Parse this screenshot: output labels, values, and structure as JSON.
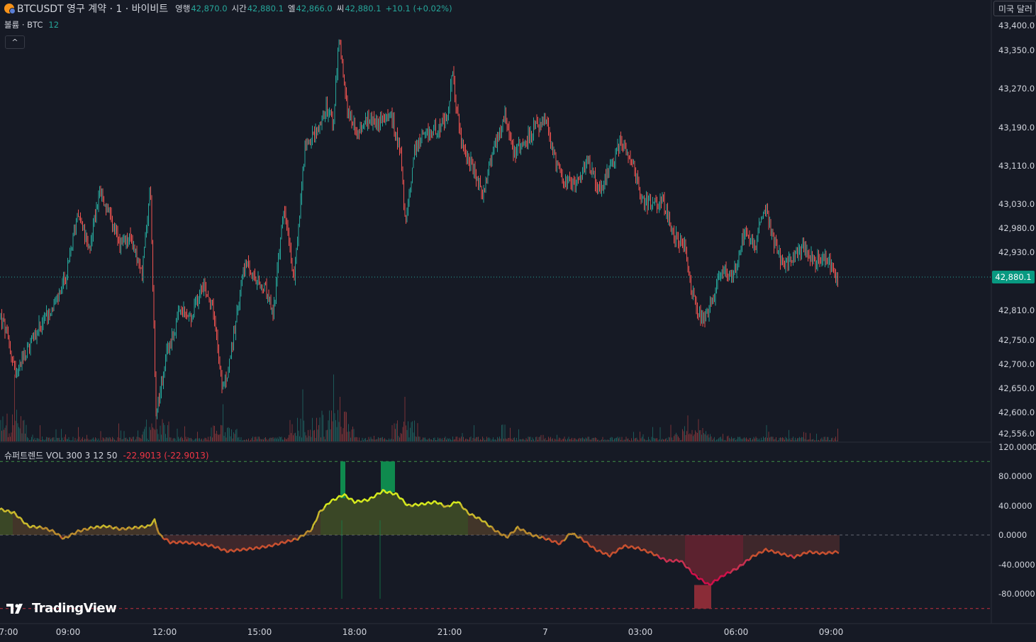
{
  "header": {
    "symbol": "BTCUSDT 영구 계약 · 1 · 바이비트",
    "open_label": "영행",
    "open_value": "42,870.0",
    "high_label": "시간",
    "high_value": "42,880.1",
    "low_label": "엘",
    "low_value": "42,866.0",
    "close_label": "씨",
    "close_value": "42,880.1",
    "change": "+10.1 (+0.02%)",
    "currency_button": "미국 달러"
  },
  "volume_legend": {
    "name": "볼륨 · BTC",
    "value": "12"
  },
  "collapse_button": "^",
  "indicator_legend": {
    "name": "슈퍼트렌드 VOL 300 3 12 50",
    "value": "-22.9013 (-22.9013)"
  },
  "price_axis": [
    "43,400.0",
    "43,350.0",
    "43,270.0",
    "43,190.0",
    "43,110.0",
    "43,030.0",
    "42,980.0",
    "42,930.0",
    "42,810.0",
    "42,750.0",
    "42,700.0",
    "42,650.0",
    "42,600.0",
    "42,556.0"
  ],
  "last_price": "42,880.1",
  "indicator_axis": [
    "120.0000",
    "80.0000",
    "40.0000",
    "0.0000",
    "-40.0000",
    "-80.0000"
  ],
  "time_axis": [
    "7:00",
    "09:00",
    "12:00",
    "15:00",
    "18:00",
    "21:00",
    "7",
    "03:00",
    "06:00",
    "09:00"
  ],
  "branding": "TradingView",
  "colors": {
    "up": "#26a69a",
    "down": "#ef5350",
    "background": "#161a25",
    "last_price_tag": "#089981"
  },
  "chart_data": {
    "type": "candlestick",
    "price_range": [
      42556,
      43400
    ],
    "indicator_range": [
      -100,
      120
    ],
    "last_price": 42880.1,
    "price_path": [
      [
        0,
        42800
      ],
      [
        10,
        42760
      ],
      [
        22,
        42680
      ],
      [
        40,
        42730
      ],
      [
        60,
        42790
      ],
      [
        80,
        42830
      ],
      [
        95,
        42890
      ],
      [
        110,
        43020
      ],
      [
        125,
        42930
      ],
      [
        140,
        43060
      ],
      [
        155,
        43000
      ],
      [
        170,
        42940
      ],
      [
        185,
        42960
      ],
      [
        200,
        42880
      ],
      [
        212,
        43070
      ],
      [
        220,
        42600
      ],
      [
        235,
        42720
      ],
      [
        255,
        42810
      ],
      [
        270,
        42790
      ],
      [
        285,
        42870
      ],
      [
        300,
        42820
      ],
      [
        315,
        42640
      ],
      [
        330,
        42760
      ],
      [
        345,
        42910
      ],
      [
        360,
        42870
      ],
      [
        375,
        42850
      ],
      [
        385,
        42800
      ],
      [
        400,
        43020
      ],
      [
        415,
        42880
      ],
      [
        430,
        43150
      ],
      [
        445,
        43180
      ],
      [
        460,
        43230
      ],
      [
        470,
        43200
      ],
      [
        478,
        43380
      ],
      [
        490,
        43230
      ],
      [
        505,
        43180
      ],
      [
        520,
        43210
      ],
      [
        535,
        43200
      ],
      [
        550,
        43220
      ],
      [
        565,
        43140
      ],
      [
        572,
        42980
      ],
      [
        585,
        43150
      ],
      [
        600,
        43170
      ],
      [
        615,
        43190
      ],
      [
        630,
        43200
      ],
      [
        638,
        43300
      ],
      [
        650,
        43160
      ],
      [
        665,
        43110
      ],
      [
        680,
        43050
      ],
      [
        695,
        43140
      ],
      [
        712,
        43220
      ],
      [
        725,
        43140
      ],
      [
        740,
        43160
      ],
      [
        755,
        43190
      ],
      [
        770,
        43200
      ],
      [
        785,
        43110
      ],
      [
        800,
        43070
      ],
      [
        815,
        43080
      ],
      [
        830,
        43120
      ],
      [
        845,
        43060
      ],
      [
        860,
        43100
      ],
      [
        875,
        43160
      ],
      [
        890,
        43130
      ],
      [
        905,
        43040
      ],
      [
        920,
        43030
      ],
      [
        935,
        43040
      ],
      [
        950,
        42960
      ],
      [
        965,
        42950
      ],
      [
        975,
        42850
      ],
      [
        990,
        42790
      ],
      [
        1005,
        42830
      ],
      [
        1020,
        42900
      ],
      [
        1035,
        42880
      ],
      [
        1050,
        42980
      ],
      [
        1065,
        42940
      ],
      [
        1078,
        43030
      ],
      [
        1090,
        42960
      ],
      [
        1105,
        42900
      ],
      [
        1120,
        42920
      ],
      [
        1135,
        42940
      ],
      [
        1150,
        42910
      ],
      [
        1165,
        42920
      ],
      [
        1182,
        42870
      ]
    ],
    "supertrend_path": [
      [
        0,
        35
      ],
      [
        20,
        30
      ],
      [
        40,
        12
      ],
      [
        60,
        10
      ],
      [
        75,
        5
      ],
      [
        90,
        -5
      ],
      [
        110,
        5
      ],
      [
        130,
        10
      ],
      [
        150,
        12
      ],
      [
        170,
        8
      ],
      [
        190,
        10
      ],
      [
        210,
        12
      ],
      [
        218,
        20
      ],
      [
        225,
        0
      ],
      [
        240,
        -10
      ],
      [
        260,
        -10
      ],
      [
        280,
        -12
      ],
      [
        300,
        -15
      ],
      [
        320,
        -22
      ],
      [
        340,
        -20
      ],
      [
        360,
        -18
      ],
      [
        380,
        -15
      ],
      [
        400,
        -10
      ],
      [
        420,
        -5
      ],
      [
        440,
        8
      ],
      [
        450,
        30
      ],
      [
        465,
        45
      ],
      [
        485,
        55
      ],
      [
        500,
        45
      ],
      [
        520,
        48
      ],
      [
        540,
        60
      ],
      [
        560,
        55
      ],
      [
        575,
        40
      ],
      [
        595,
        42
      ],
      [
        615,
        45
      ],
      [
        630,
        38
      ],
      [
        645,
        46
      ],
      [
        660,
        30
      ],
      [
        680,
        20
      ],
      [
        700,
        5
      ],
      [
        715,
        -3
      ],
      [
        730,
        10
      ],
      [
        750,
        0
      ],
      [
        770,
        -5
      ],
      [
        790,
        -12
      ],
      [
        805,
        3
      ],
      [
        820,
        -5
      ],
      [
        840,
        -20
      ],
      [
        860,
        -28
      ],
      [
        880,
        -15
      ],
      [
        900,
        -18
      ],
      [
        920,
        -25
      ],
      [
        940,
        -35
      ],
      [
        960,
        -35
      ],
      [
        980,
        -55
      ],
      [
        1000,
        -68
      ],
      [
        1020,
        -55
      ],
      [
        1040,
        -45
      ],
      [
        1060,
        -30
      ],
      [
        1080,
        -20
      ],
      [
        1100,
        -25
      ],
      [
        1120,
        -30
      ],
      [
        1140,
        -23
      ],
      [
        1160,
        -25
      ],
      [
        1182,
        -23
      ]
    ],
    "indicator_thresholds": [
      100,
      0,
      -100
    ],
    "volume_spikes": [
      [
        20,
        0.9
      ],
      [
        220,
        0.7
      ],
      [
        315,
        0.5
      ],
      [
        427,
        0.7
      ],
      [
        470,
        0.9
      ],
      [
        480,
        0.6
      ],
      [
        571,
        0.6
      ],
      [
        970,
        0.35
      ],
      [
        985,
        0.3
      ]
    ]
  }
}
